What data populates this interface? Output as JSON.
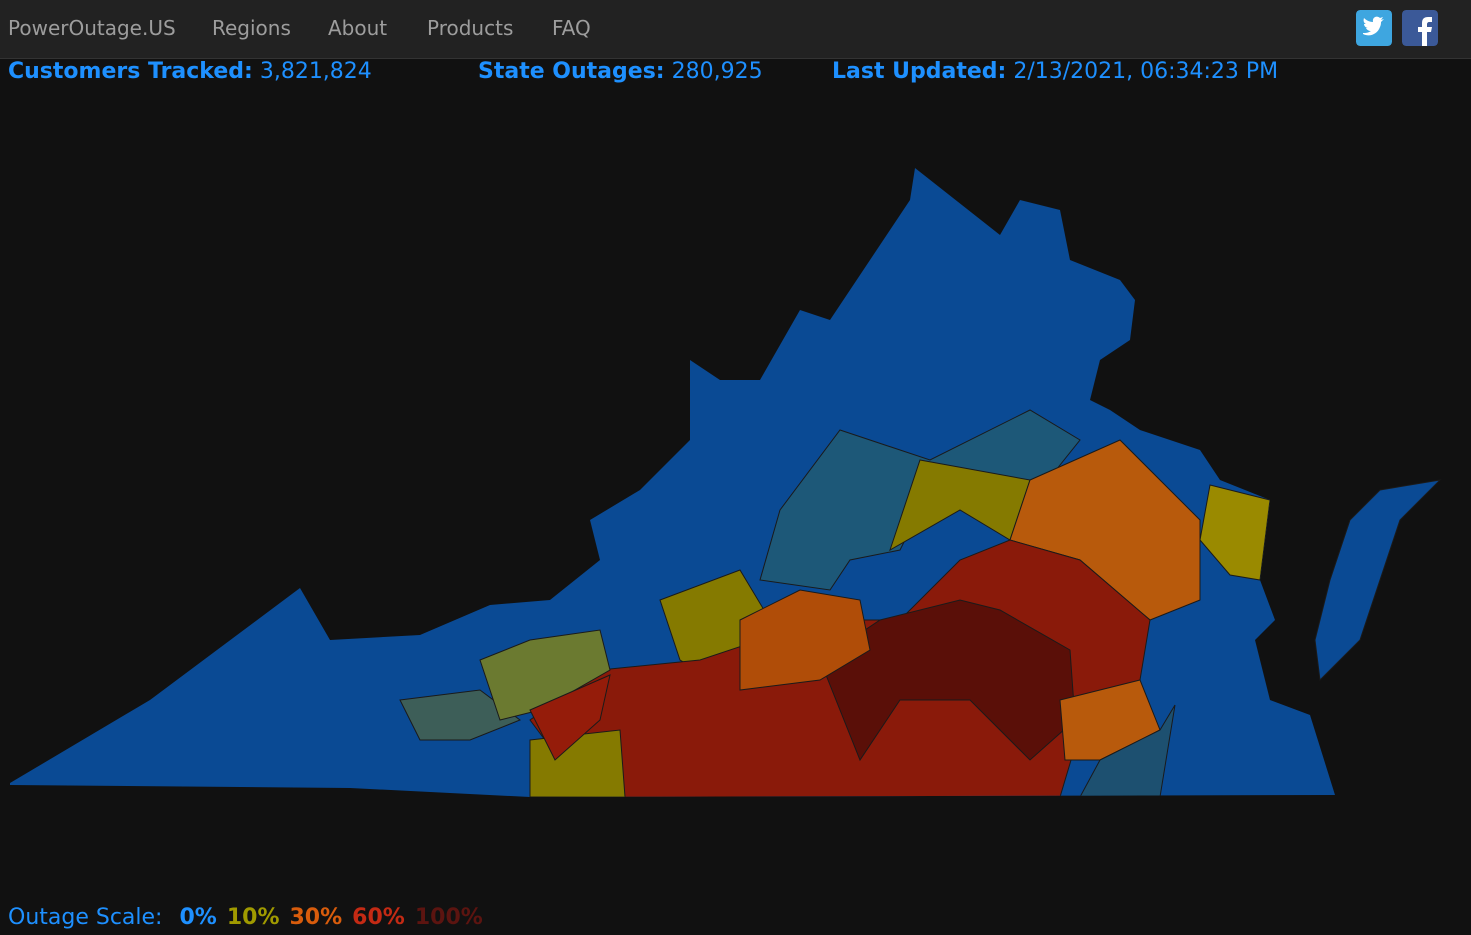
{
  "nav": {
    "brand": "PowerOutage.US",
    "links": [
      "Regions",
      "About",
      "Products",
      "FAQ"
    ]
  },
  "stats": [
    {
      "label": "Customers Tracked:",
      "value": "3,821,824"
    },
    {
      "label": "State Outages:",
      "value": "280,925"
    },
    {
      "label": "Last Updated:",
      "value": "2/13/2021, 06:34:23 PM"
    }
  ],
  "scale": {
    "label": "Outage Scale:",
    "steps": [
      "0%",
      "10%",
      "30%",
      "60%",
      "100%"
    ]
  }
}
